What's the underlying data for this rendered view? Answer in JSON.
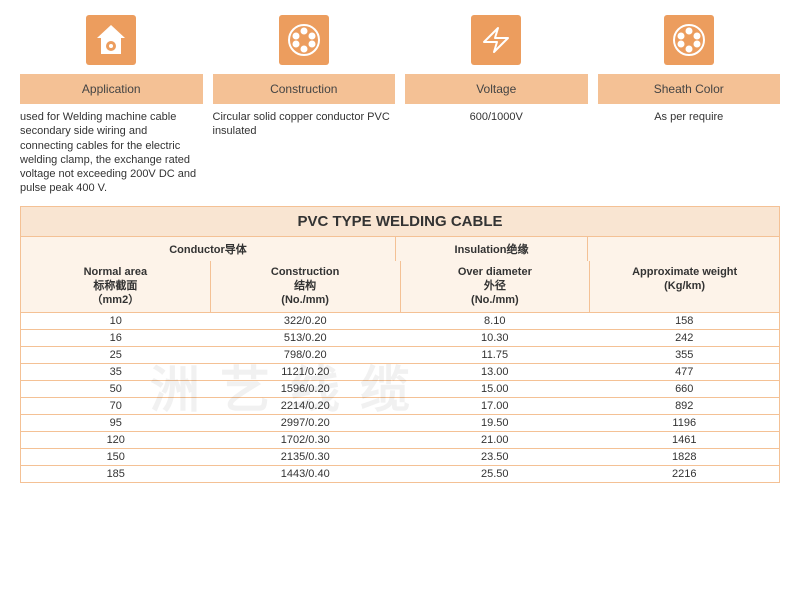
{
  "colors": {
    "icon_bg": "#ec9d5e",
    "header_bg": "#f4c195",
    "title_bg": "#f9e5d2",
    "sub_bg": "#fdf3e9",
    "border": "#f4c195"
  },
  "headers": {
    "col1": "Application",
    "col2": "Construction",
    "col3": "Voltage",
    "col4": "Sheath Color"
  },
  "desc": {
    "col1": "used for Welding machine cable secondary side wiring and connecting cables for the electric welding clamp, the exchange rated voltage not exceeding 200V  DC and pulse peak 400 V.",
    "col2": "Circular solid copper conductor PVC insulated",
    "col3": "600/1000V",
    "col4": "As per require"
  },
  "table": {
    "title": "PVC TYPE WELDING CABLE",
    "group1": "Conductor导体",
    "group2": "Insulation绝缘",
    "sub": {
      "c1a": "Normal area",
      "c1b": "标称截面",
      "c1c": "（mm2）",
      "c2a": "Construction",
      "c2b": "结构",
      "c2c": "(No./mm)",
      "c3a": "Over diameter",
      "c3b": "外径",
      "c3c": "(No./mm)",
      "c4a": "Approximate weight",
      "c4b": "(Kg/km)"
    },
    "rows": [
      {
        "a": "10",
        "b": "322/0.20",
        "c": "8.10",
        "d": "158"
      },
      {
        "a": "16",
        "b": "513/0.20",
        "c": "10.30",
        "d": "242"
      },
      {
        "a": "25",
        "b": "798/0.20",
        "c": "11.75",
        "d": "355"
      },
      {
        "a": "35",
        "b": "1121/0.20",
        "c": "13.00",
        "d": "477"
      },
      {
        "a": "50",
        "b": "1596/0.20",
        "c": "15.00",
        "d": "660"
      },
      {
        "a": "70",
        "b": "2214/0.20",
        "c": "17.00",
        "d": "892"
      },
      {
        "a": "95",
        "b": "2997/0.20",
        "c": "19.50",
        "d": "1196"
      },
      {
        "a": "120",
        "b": "1702/0.30",
        "c": "21.00",
        "d": "1461"
      },
      {
        "a": "150",
        "b": "2135/0.30",
        "c": "23.50",
        "d": "1828"
      },
      {
        "a": "185",
        "b": "1443/0.40",
        "c": "25.50",
        "d": "2216"
      }
    ]
  },
  "watermark": "洲艺线缆"
}
